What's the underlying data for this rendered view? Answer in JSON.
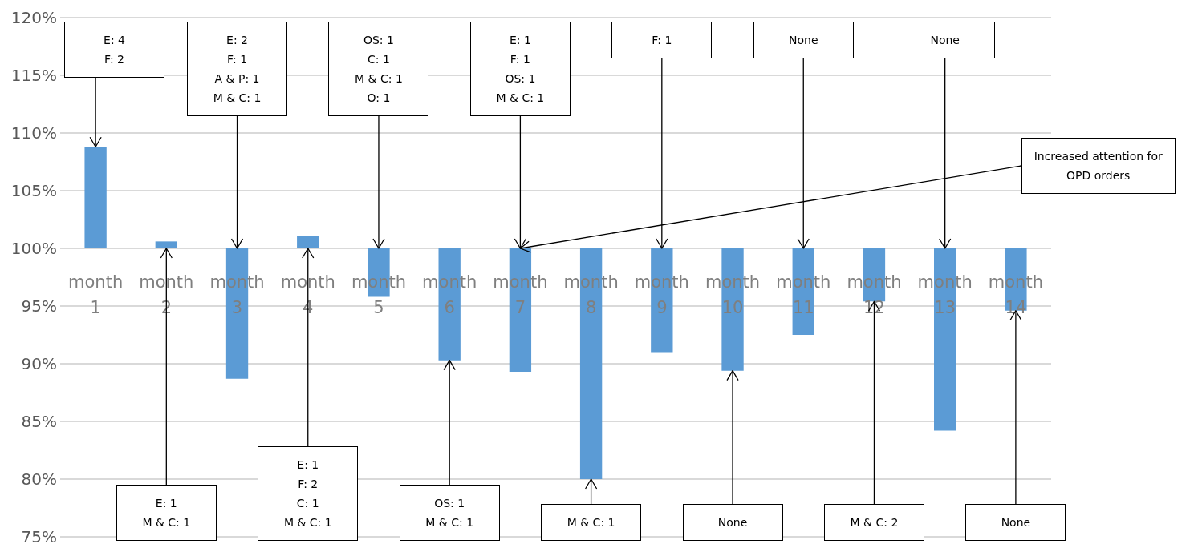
{
  "chart_data": {
    "type": "bar",
    "categories": [
      "month 1",
      "month 2",
      "month 3",
      "month 4",
      "month 5",
      "month 6",
      "month 7",
      "month 8",
      "month 9",
      "month 10",
      "month 11",
      "month 12",
      "month 13",
      "month 14"
    ],
    "values": [
      8.8,
      0.6,
      -11.3,
      1.1,
      -4.2,
      -9.7,
      -10.7,
      -20.0,
      -9.0,
      -10.6,
      -7.5,
      -4.6,
      -15.8,
      -5.4
    ],
    "base": [
      100,
      100,
      100,
      100,
      100,
      100,
      100,
      100,
      100,
      100,
      100,
      100,
      100,
      100
    ],
    "color": "#5b9bd5",
    "ylim": [
      75,
      120
    ],
    "yticks": [
      {
        "value": 75,
        "label": "75%"
      },
      {
        "value": 80,
        "label": "80%"
      },
      {
        "value": 85,
        "label": "85%"
      },
      {
        "value": 90,
        "label": "90%"
      },
      {
        "value": 95,
        "label": "95%"
      },
      {
        "value": 100,
        "label": "100%"
      },
      {
        "value": 105,
        "label": "105%"
      },
      {
        "value": 110,
        "label": "110%"
      },
      {
        "value": 115,
        "label": "115%"
      },
      {
        "value": 120,
        "label": "120%"
      }
    ],
    "grid": "y",
    "annotations": [
      {
        "text": "E: 4\nF: 2",
        "x": "month 1",
        "y": 108.8
      },
      {
        "text": "E: 1\nM & C: 1",
        "x": "month 2",
        "y": 100
      },
      {
        "text": "E: 2\nF: 1\nA & P: 1\nM & C: 1",
        "x": "month 3",
        "y": 100
      },
      {
        "text": "E: 1\nF: 2\nC: 1\nM & C: 1",
        "x": "month 4",
        "y": 100
      },
      {
        "text": "OS: 1\nC: 1\nM & C: 1\nO: 1",
        "x": "month 5",
        "y": 100
      },
      {
        "text": "OS: 1\nM & C: 1",
        "x": "month 6",
        "y": 90.3
      },
      {
        "text": "E: 1\nF: 1\nOS: 1\nM & C: 1",
        "x": "month 7",
        "y": 100
      },
      {
        "text": "M & C: 1",
        "x": "month 8",
        "y": 80.0
      },
      {
        "text": "F: 1",
        "x": "month 9",
        "y": 100
      },
      {
        "text": "None",
        "x": "month 10",
        "y": 89.4
      },
      {
        "text": "None",
        "x": "month 11",
        "y": 100
      },
      {
        "text": "M & C: 2",
        "x": "month 12",
        "y": 95.4
      },
      {
        "text": "None",
        "x": "month 13",
        "y": 100
      },
      {
        "text": "None",
        "x": "month 14",
        "y": 94.6
      },
      {
        "text": "Increased attention for\nOPD orders",
        "x": "month 7",
        "y": 100
      }
    ]
  }
}
